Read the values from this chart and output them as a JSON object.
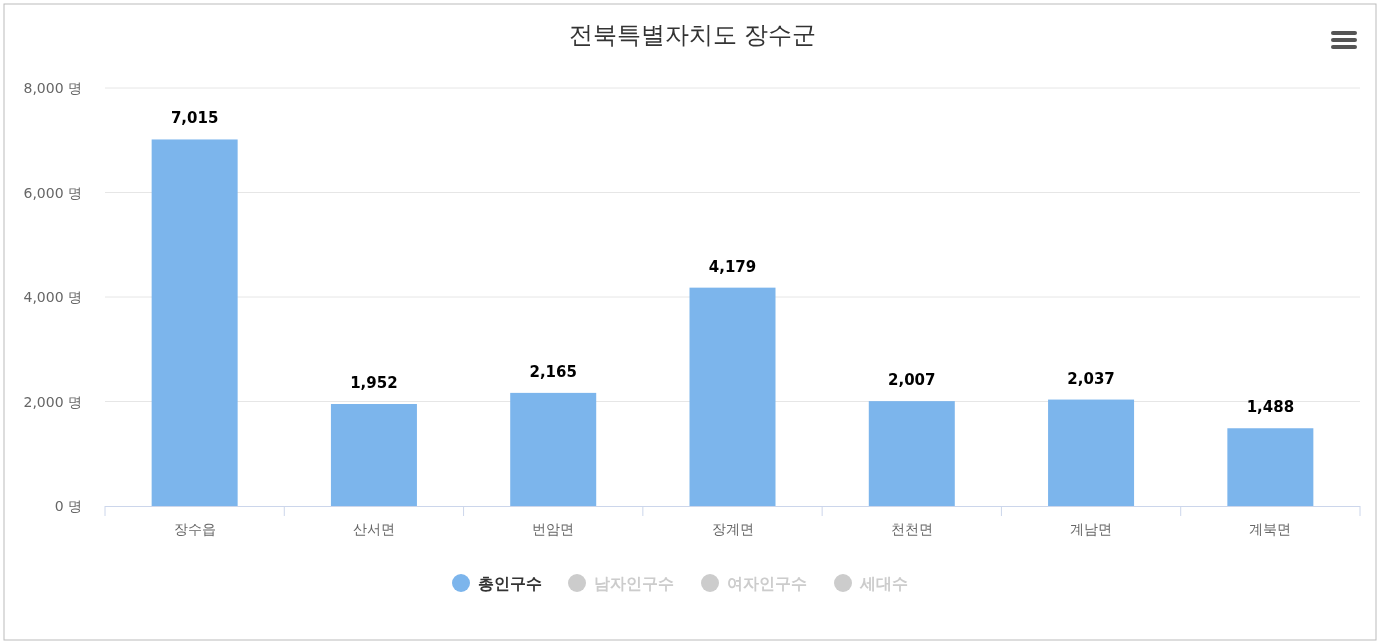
{
  "chart_data": {
    "type": "bar",
    "title": "전북특별자치도 장수군",
    "categories": [
      "장수읍",
      "산서면",
      "번암면",
      "장계면",
      "천천면",
      "계남면",
      "계북면"
    ],
    "series": [
      {
        "name": "총인구수",
        "color": "#7cb5ec",
        "values": [
          7015,
          1952,
          2165,
          4179,
          2007,
          2037,
          1488
        ],
        "value_labels": [
          "7,015",
          "1,952",
          "2,165",
          "4,179",
          "2,007",
          "2,037",
          "1,488"
        ]
      },
      {
        "name": "남자인구수",
        "color": "#cccccc",
        "values": [
          null,
          null,
          null,
          null,
          null,
          null,
          null
        ]
      },
      {
        "name": "여자인구수",
        "color": "#cccccc",
        "values": [
          null,
          null,
          null,
          null,
          null,
          null,
          null
        ]
      },
      {
        "name": "세대수",
        "color": "#cccccc",
        "values": [
          null,
          null,
          null,
          null,
          null,
          null,
          null
        ]
      }
    ],
    "ylim": [
      0,
      8000
    ],
    "yticks": [
      {
        "value": 0,
        "label": "0 명"
      },
      {
        "value": 2000,
        "label": "2,000 명"
      },
      {
        "value": 4000,
        "label": "4,000 명"
      },
      {
        "value": 6000,
        "label": "6,000 명"
      },
      {
        "value": 8000,
        "label": "8,000 명"
      }
    ],
    "grid": "y",
    "legend": "bottom"
  }
}
